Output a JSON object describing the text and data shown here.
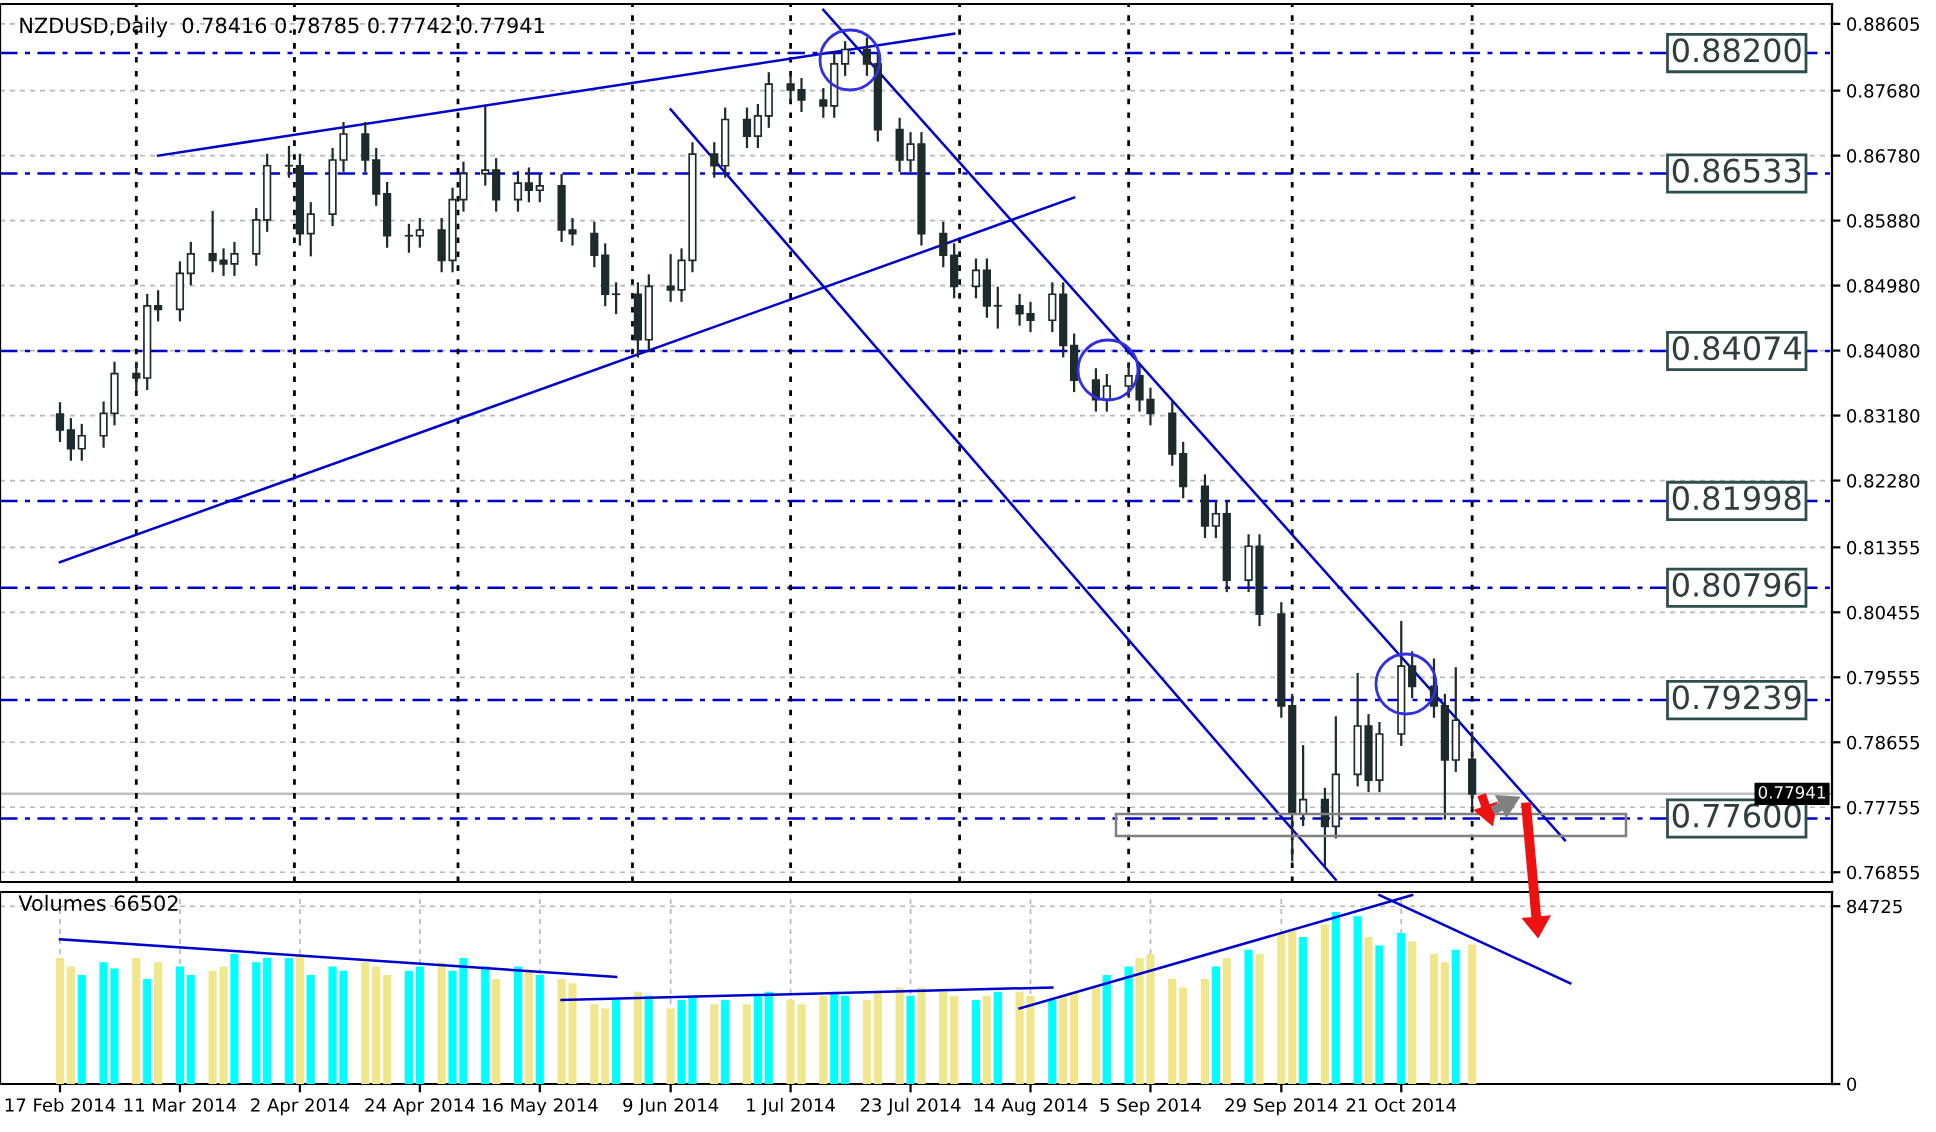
{
  "chart_data": [
    {
      "type": "candlestick",
      "title": "NZDUSD,Daily  0.78416 0.78785 0.77742 0.77941",
      "color": "#1c2b2b",
      "x": [
        "2014-02-17",
        "2014-02-19",
        "2014-02-21",
        "2014-02-25",
        "2014-02-27",
        "2014-03-03",
        "2014-03-05",
        "2014-03-07",
        "2014-03-11",
        "2014-03-13",
        "2014-03-17",
        "2014-03-19",
        "2014-03-21",
        "2014-03-25",
        "2014-03-27",
        "2014-03-31",
        "2014-04-02",
        "2014-04-04",
        "2014-04-08",
        "2014-04-10",
        "2014-04-14",
        "2014-04-16",
        "2014-04-18",
        "2014-04-22",
        "2014-04-24",
        "2014-04-28",
        "2014-04-30",
        "2014-05-02",
        "2014-05-06",
        "2014-05-08",
        "2014-05-12",
        "2014-05-14",
        "2014-05-16",
        "2014-05-20",
        "2014-05-22",
        "2014-05-26",
        "2014-05-28",
        "2014-05-30",
        "2014-06-03",
        "2014-06-05",
        "2014-06-09",
        "2014-06-11",
        "2014-06-13",
        "2014-06-17",
        "2014-06-19",
        "2014-06-23",
        "2014-06-25",
        "2014-06-27",
        "2014-07-01",
        "2014-07-03",
        "2014-07-07",
        "2014-07-09",
        "2014-07-11",
        "2014-07-15",
        "2014-07-17",
        "2014-07-21",
        "2014-07-23",
        "2014-07-25",
        "2014-07-29",
        "2014-07-31",
        "2014-08-04",
        "2014-08-06",
        "2014-08-08",
        "2014-08-12",
        "2014-08-14",
        "2014-08-18",
        "2014-08-20",
        "2014-08-22",
        "2014-08-26",
        "2014-08-28",
        "2014-09-01",
        "2014-09-03",
        "2014-09-05",
        "2014-09-09",
        "2014-09-11",
        "2014-09-15",
        "2014-09-17",
        "2014-09-19",
        "2014-09-23",
        "2014-09-25",
        "2014-09-29",
        "2014-10-01",
        "2014-10-03",
        "2014-10-07",
        "2014-10-09",
        "2014-10-13",
        "2014-10-15",
        "2014-10-17",
        "2014-10-21",
        "2014-10-23",
        "2014-10-27",
        "2014-10-29",
        "2014-10-31",
        "2014-11-03"
      ],
      "ohlc": [
        [
          0.832,
          0.8335,
          0.8283,
          0.8298
        ],
        [
          0.8298,
          0.8313,
          0.8257,
          0.8272
        ],
        [
          0.8272,
          0.8305,
          0.8257,
          0.829
        ],
        [
          0.829,
          0.8336,
          0.8275,
          0.8321
        ],
        [
          0.8321,
          0.8391,
          0.8306,
          0.8376
        ],
        [
          0.8376,
          0.8391,
          0.8355,
          0.837
        ],
        [
          0.837,
          0.8485,
          0.8355,
          0.847
        ],
        [
          0.847,
          0.849,
          0.845,
          0.8465
        ],
        [
          0.8465,
          0.853,
          0.845,
          0.8515
        ],
        [
          0.8515,
          0.8557,
          0.85,
          0.8542
        ],
        [
          0.8542,
          0.86,
          0.8518,
          0.8533
        ],
        [
          0.8533,
          0.8548,
          0.8513,
          0.8528
        ],
        [
          0.8528,
          0.8557,
          0.8513,
          0.8542
        ],
        [
          0.8542,
          0.8604,
          0.8527,
          0.8589
        ],
        [
          0.8589,
          0.8679,
          0.8574,
          0.8664
        ],
        [
          0.8664,
          0.869,
          0.8649,
          0.8664
        ],
        [
          0.8664,
          0.8679,
          0.8555,
          0.857
        ],
        [
          0.857,
          0.8612,
          0.854,
          0.8597
        ],
        [
          0.8597,
          0.8687,
          0.8582,
          0.8672
        ],
        [
          0.8672,
          0.8723,
          0.8657,
          0.8708
        ],
        [
          0.8708,
          0.8723,
          0.8657,
          0.8672
        ],
        [
          0.8672,
          0.8687,
          0.861,
          0.8625
        ],
        [
          0.8625,
          0.864,
          0.8552,
          0.8567
        ],
        [
          0.8567,
          0.8582,
          0.8545,
          0.8567
        ],
        [
          0.8567,
          0.859,
          0.8552,
          0.8575
        ],
        [
          0.8575,
          0.859,
          0.8518,
          0.8533
        ],
        [
          0.8533,
          0.8632,
          0.8518,
          0.8617
        ],
        [
          0.8617,
          0.8668,
          0.8602,
          0.8653
        ],
        [
          0.8653,
          0.8745,
          0.8638,
          0.8658
        ],
        [
          0.8658,
          0.8673,
          0.8602,
          0.8617
        ],
        [
          0.8617,
          0.8655,
          0.8602,
          0.864
        ],
        [
          0.864,
          0.866,
          0.8615,
          0.863
        ],
        [
          0.863,
          0.8651,
          0.8615,
          0.8636
        ],
        [
          0.8636,
          0.8651,
          0.856,
          0.8575
        ],
        [
          0.8575,
          0.859,
          0.8555,
          0.857
        ],
        [
          0.857,
          0.8585,
          0.8525,
          0.854
        ],
        [
          0.854,
          0.8555,
          0.8471,
          0.8486
        ],
        [
          0.8486,
          0.8501,
          0.846,
          0.8486
        ],
        [
          0.8486,
          0.8501,
          0.84,
          0.8423
        ],
        [
          0.8423,
          0.8512,
          0.8408,
          0.8497
        ],
        [
          0.8497,
          0.854,
          0.8477,
          0.8492
        ],
        [
          0.8492,
          0.8548,
          0.8477,
          0.8533
        ],
        [
          0.8533,
          0.8695,
          0.8518,
          0.868
        ],
        [
          0.868,
          0.8695,
          0.8649,
          0.8664
        ],
        [
          0.8664,
          0.8743,
          0.8649,
          0.8728
        ],
        [
          0.8728,
          0.8743,
          0.869,
          0.8705
        ],
        [
          0.8705,
          0.8748,
          0.869,
          0.8733
        ],
        [
          0.8733,
          0.8792,
          0.8718,
          0.8777
        ],
        [
          0.8777,
          0.8792,
          0.8754,
          0.8769
        ],
        [
          0.8769,
          0.8784,
          0.874,
          0.8755
        ],
        [
          0.8755,
          0.877,
          0.8732,
          0.8747
        ],
        [
          0.8747,
          0.882,
          0.8732,
          0.8805
        ],
        [
          0.8805,
          0.8835,
          0.879,
          0.8825
        ],
        [
          0.8825,
          0.884,
          0.879,
          0.8805
        ],
        [
          0.8805,
          0.882,
          0.8699,
          0.8714
        ],
        [
          0.8714,
          0.8729,
          0.8657,
          0.8672
        ],
        [
          0.8672,
          0.8709,
          0.8657,
          0.8694
        ],
        [
          0.8694,
          0.8709,
          0.8555,
          0.857
        ],
        [
          0.857,
          0.8585,
          0.8525,
          0.854
        ],
        [
          0.854,
          0.8555,
          0.8482,
          0.8497
        ],
        [
          0.8497,
          0.8534,
          0.8482,
          0.8519
        ],
        [
          0.8519,
          0.8534,
          0.8455,
          0.847
        ],
        [
          0.847,
          0.8495,
          0.844,
          0.847
        ],
        [
          0.847,
          0.8485,
          0.8444,
          0.8459
        ],
        [
          0.8459,
          0.8474,
          0.8435,
          0.845
        ],
        [
          0.845,
          0.8501,
          0.8435,
          0.8486
        ],
        [
          0.8486,
          0.8501,
          0.84,
          0.8415
        ],
        [
          0.8415,
          0.843,
          0.8352,
          0.8367
        ],
        [
          0.8367,
          0.8382,
          0.8325,
          0.834
        ],
        [
          0.834,
          0.8374,
          0.8325,
          0.8359
        ],
        [
          0.8359,
          0.8388,
          0.8344,
          0.8373
        ],
        [
          0.8373,
          0.8388,
          0.8325,
          0.834
        ],
        [
          0.834,
          0.8355,
          0.8306,
          0.8321
        ],
        [
          0.8321,
          0.8336,
          0.825,
          0.8265
        ],
        [
          0.8265,
          0.828,
          0.8205,
          0.822
        ],
        [
          0.822,
          0.8235,
          0.815,
          0.8165
        ],
        [
          0.8165,
          0.8197,
          0.815,
          0.8182
        ],
        [
          0.8182,
          0.8197,
          0.8075,
          0.809
        ],
        [
          0.809,
          0.8152,
          0.8075,
          0.8137
        ],
        [
          0.8137,
          0.8152,
          0.8028,
          0.8043
        ],
        [
          0.8043,
          0.8058,
          0.7901,
          0.7916
        ],
        [
          0.7916,
          0.7931,
          0.7702,
          0.7766
        ],
        [
          0.7766,
          0.786,
          0.7751,
          0.7786
        ],
        [
          0.7786,
          0.7801,
          0.7694,
          0.7749
        ],
        [
          0.7749,
          0.79,
          0.7734,
          0.7821
        ],
        [
          0.7821,
          0.796,
          0.7806,
          0.7888
        ],
        [
          0.7888,
          0.7903,
          0.7798,
          0.7813
        ],
        [
          0.7813,
          0.7892,
          0.7798,
          0.7877
        ],
        [
          0.7877,
          0.8032,
          0.7862,
          0.7971
        ],
        [
          0.7971,
          0.799,
          0.7928,
          0.7943
        ],
        [
          0.7943,
          0.798,
          0.7901,
          0.7916
        ],
        [
          0.7916,
          0.7931,
          0.776,
          0.7841
        ],
        [
          0.7841,
          0.7968,
          0.7826,
          0.7896
        ],
        [
          0.7842,
          0.7879,
          0.7774,
          0.7794
        ]
      ],
      "series": [
        {
          "type": "line",
          "color": "#0000cd",
          "x": [
            "2014-03-07",
            "2014-07-31"
          ],
          "values": [
            0.8678,
            0.8847
          ]
        },
        {
          "type": "line",
          "color": "#0000cd",
          "x": [
            "2014-02-17",
            "2014-08-22"
          ],
          "values": [
            0.8115,
            0.862
          ]
        },
        {
          "type": "line",
          "color": "#0000cd",
          "x": [
            "2014-07-07",
            "2014-11-20"
          ],
          "values": [
            0.888,
            0.773
          ]
        },
        {
          "type": "line",
          "color": "#0000cd",
          "x": [
            "2014-06-09",
            "2014-10-09"
          ],
          "values": [
            0.8742,
            0.7675
          ]
        }
      ],
      "ref_lines": [
        {
          "axis": "y",
          "value": 0.882,
          "label": "0.88200",
          "color": "#0000cd",
          "line_style": "dashed"
        },
        {
          "axis": "y",
          "value": 0.86533,
          "label": "0.86533",
          "color": "#0000cd",
          "line_style": "dashed"
        },
        {
          "axis": "y",
          "value": 0.84074,
          "label": "0.84074",
          "color": "#0000cd",
          "line_style": "dashed"
        },
        {
          "axis": "y",
          "value": 0.81998,
          "label": "0.81998",
          "color": "#0000cd",
          "line_style": "dashed"
        },
        {
          "axis": "y",
          "value": 0.80796,
          "label": "0.80796",
          "color": "#0000cd",
          "line_style": "dashed"
        },
        {
          "axis": "y",
          "value": 0.79239,
          "label": "0.79239",
          "color": "#0000cd",
          "line_style": "dashed"
        },
        {
          "axis": "y",
          "value": 0.776,
          "label": "0.77600",
          "color": "#0000cd",
          "line_style": "dashed"
        },
        {
          "axis": "y",
          "value": 0.77941,
          "label": "0.77941",
          "color": "#c0c0c0",
          "line_style": "solid"
        },
        {
          "axis": "x",
          "value": "2014-03-03",
          "color": "#000000",
          "line_style": "dotted"
        },
        {
          "axis": "x",
          "value": "2014-04-01",
          "color": "#000000",
          "line_style": "dotted"
        },
        {
          "axis": "x",
          "value": "2014-05-01",
          "color": "#000000",
          "line_style": "dotted"
        },
        {
          "axis": "x",
          "value": "2014-06-02",
          "color": "#000000",
          "line_style": "dotted"
        },
        {
          "axis": "x",
          "value": "2014-07-01",
          "color": "#000000",
          "line_style": "dotted"
        },
        {
          "axis": "x",
          "value": "2014-08-01",
          "color": "#000000",
          "line_style": "dotted"
        },
        {
          "axis": "x",
          "value": "2014-09-01",
          "color": "#000000",
          "line_style": "dotted"
        },
        {
          "axis": "x",
          "value": "2014-10-01",
          "color": "#000000",
          "line_style": "dotted"
        },
        {
          "axis": "x",
          "value": "2014-11-03",
          "color": "#000000",
          "line_style": "dotted"
        }
      ],
      "xlim": [
        "2014-02-06",
        "2015-01-08"
      ],
      "ylim": [
        0.7672,
        0.8888
      ],
      "yticks": [
        0.88605,
        {
          "value": 0.8768,
          "label": "0.87680"
        },
        {
          "value": 0.8678,
          "label": "0.86780"
        },
        {
          "value": 0.8588,
          "label": "0.85880"
        },
        {
          "value": 0.8498,
          "label": "0.84980"
        },
        {
          "value": 0.8408,
          "label": "0.84080"
        },
        {
          "value": 0.8318,
          "label": "0.83180"
        },
        {
          "value": 0.8228,
          "label": "0.82280"
        },
        0.81355,
        0.80455,
        0.79555,
        0.78655,
        0.77755,
        0.76855
      ],
      "grid": "y",
      "tick_labels": "y"
    },
    {
      "type": "bar",
      "title": "Volumes 66502",
      "x": [
        "2014-02-17",
        "2014-02-19",
        "2014-02-21",
        "2014-02-25",
        "2014-02-27",
        "2014-03-03",
        "2014-03-05",
        "2014-03-07",
        "2014-03-11",
        "2014-03-13",
        "2014-03-17",
        "2014-03-19",
        "2014-03-21",
        "2014-03-25",
        "2014-03-27",
        "2014-03-31",
        "2014-04-02",
        "2014-04-04",
        "2014-04-08",
        "2014-04-10",
        "2014-04-14",
        "2014-04-16",
        "2014-04-18",
        "2014-04-22",
        "2014-04-24",
        "2014-04-28",
        "2014-04-30",
        "2014-05-02",
        "2014-05-06",
        "2014-05-08",
        "2014-05-12",
        "2014-05-14",
        "2014-05-16",
        "2014-05-20",
        "2014-05-22",
        "2014-05-26",
        "2014-05-28",
        "2014-05-30",
        "2014-06-03",
        "2014-06-05",
        "2014-06-09",
        "2014-06-11",
        "2014-06-13",
        "2014-06-17",
        "2014-06-19",
        "2014-06-23",
        "2014-06-25",
        "2014-06-27",
        "2014-07-01",
        "2014-07-03",
        "2014-07-07",
        "2014-07-09",
        "2014-07-11",
        "2014-07-15",
        "2014-07-17",
        "2014-07-21",
        "2014-07-23",
        "2014-07-25",
        "2014-07-29",
        "2014-07-31",
        "2014-08-04",
        "2014-08-06",
        "2014-08-08",
        "2014-08-12",
        "2014-08-14",
        "2014-08-18",
        "2014-08-20",
        "2014-08-22",
        "2014-08-26",
        "2014-08-28",
        "2014-09-01",
        "2014-09-03",
        "2014-09-05",
        "2014-09-09",
        "2014-09-11",
        "2014-09-15",
        "2014-09-17",
        "2014-09-19",
        "2014-09-23",
        "2014-09-25",
        "2014-09-29",
        "2014-10-01",
        "2014-10-03",
        "2014-10-07",
        "2014-10-09",
        "2014-10-13",
        "2014-10-15",
        "2014-10-17",
        "2014-10-21",
        "2014-10-23",
        "2014-10-27",
        "2014-10-29",
        "2014-10-31",
        "2014-11-03"
      ],
      "series": [
        {
          "type": "bar",
          "values": [
            60000,
            56000,
            52000,
            58000,
            55000,
            60000,
            50000,
            58000,
            56000,
            52000,
            54000,
            56000,
            62000,
            58000,
            60000,
            60000,
            62000,
            52000,
            56000,
            54000,
            58000,
            56000,
            52000,
            54000,
            56000,
            58000,
            54000,
            60000,
            56000,
            50000,
            56000,
            54000,
            52000,
            50000,
            48000,
            38000,
            36000,
            40000,
            44000,
            42000,
            36000,
            40000,
            42000,
            38000,
            40000,
            38000,
            42000,
            44000,
            40000,
            38000,
            42000,
            44000,
            42000,
            40000,
            44000,
            46000,
            42000,
            46000,
            44000,
            42000,
            40000,
            42000,
            44000,
            44000,
            42000,
            40000,
            42000,
            44000,
            46000,
            52000,
            56000,
            60000,
            62000,
            50000,
            46000,
            50000,
            56000,
            60000,
            64000,
            62000,
            72000,
            74000,
            70000,
            76000,
            82000,
            80000,
            70000,
            66000,
            72000,
            68000,
            62000,
            58000,
            64000,
            66502
          ],
          "colors": [
            "#f0e68c",
            "#f0e68c",
            "#00ffff",
            "#00ffff",
            "#00ffff",
            "#f0e68c",
            "#00ffff",
            "#f0e68c",
            "#00ffff",
            "#00ffff",
            "#f0e68c",
            "#f0e68c",
            "#00ffff",
            "#00ffff",
            "#00ffff",
            "#00ffff",
            "#f0e68c",
            "#00ffff",
            "#00ffff",
            "#00ffff",
            "#f0e68c",
            "#f0e68c",
            "#f0e68c",
            "#00ffff",
            "#00ffff",
            "#f0e68c",
            "#00ffff",
            "#00ffff",
            "#00ffff",
            "#f0e68c",
            "#00ffff",
            "#f0e68c",
            "#00ffff",
            "#f0e68c",
            "#f0e68c",
            "#f0e68c",
            "#f0e68c",
            "#00ffff",
            "#f0e68c",
            "#00ffff",
            "#f0e68c",
            "#00ffff",
            "#00ffff",
            "#f0e68c",
            "#00ffff",
            "#f0e68c",
            "#00ffff",
            "#00ffff",
            "#f0e68c",
            "#f0e68c",
            "#f0e68c",
            "#00ffff",
            "#00ffff",
            "#f0e68c",
            "#f0e68c",
            "#f0e68c",
            "#00ffff",
            "#f0e68c",
            "#f0e68c",
            "#f0e68c",
            "#00ffff",
            "#f0e68c",
            "#00ffff",
            "#f0e68c",
            "#f0e68c",
            "#00ffff",
            "#f0e68c",
            "#f0e68c",
            "#f0e68c",
            "#00ffff",
            "#00ffff",
            "#f0e68c",
            "#f0e68c",
            "#f0e68c",
            "#f0e68c",
            "#f0e68c",
            "#00ffff",
            "#f0e68c",
            "#00ffff",
            "#f0e68c",
            "#f0e68c",
            "#f0e68c",
            "#00ffff",
            "#f0e68c",
            "#00ffff",
            "#00ffff",
            "#f0e68c",
            "#00ffff",
            "#00ffff",
            "#f0e68c",
            "#f0e68c",
            "#f0e68c",
            "#00ffff",
            "#f0e68c"
          ]
        },
        {
          "type": "line",
          "color": "#0000cd",
          "x": [
            "2014-02-17",
            "2014-05-30"
          ],
          "values": [
            69000,
            51000
          ]
        },
        {
          "type": "line",
          "color": "#0000cd",
          "x": [
            "2014-05-20",
            "2014-08-18"
          ],
          "values": [
            40000,
            46000
          ]
        },
        {
          "type": "line",
          "color": "#0000cd",
          "x": [
            "2014-08-12",
            "2014-10-23"
          ],
          "values": [
            36000,
            90000
          ]
        },
        {
          "type": "line",
          "color": "#0000cd",
          "x": [
            "2014-10-17",
            "2014-11-21"
          ],
          "values": [
            90000,
            48000
          ]
        }
      ],
      "xlim": [
        "2014-02-06",
        "2015-01-08"
      ],
      "xticks": [
        {
          "value": "2014-02-17",
          "label": "17 Feb 2014"
        },
        {
          "value": "2014-03-11",
          "label": "11 Mar 2014"
        },
        {
          "value": "2014-04-02",
          "label": "2 Apr 2014"
        },
        {
          "value": "2014-04-24",
          "label": "24 Apr 2014"
        },
        {
          "value": "2014-05-16",
          "label": "16 May 2014"
        },
        {
          "value": "2014-06-09",
          "label": "9 Jun 2014"
        },
        {
          "value": "2014-07-01",
          "label": "1 Jul 2014"
        },
        {
          "value": "2014-07-23",
          "label": "23 Jul 2014"
        },
        {
          "value": "2014-08-14",
          "label": "14 Aug 2014"
        },
        {
          "value": "2014-09-05",
          "label": "5 Sep 2014"
        },
        {
          "value": "2014-09-29",
          "label": "29 Sep 2014"
        },
        {
          "value": "2014-10-21",
          "label": "21 Oct 2014"
        }
      ],
      "ylim": [
        0,
        91500
      ],
      "yticks": [
        0,
        84725
      ],
      "grid": true
    }
  ]
}
